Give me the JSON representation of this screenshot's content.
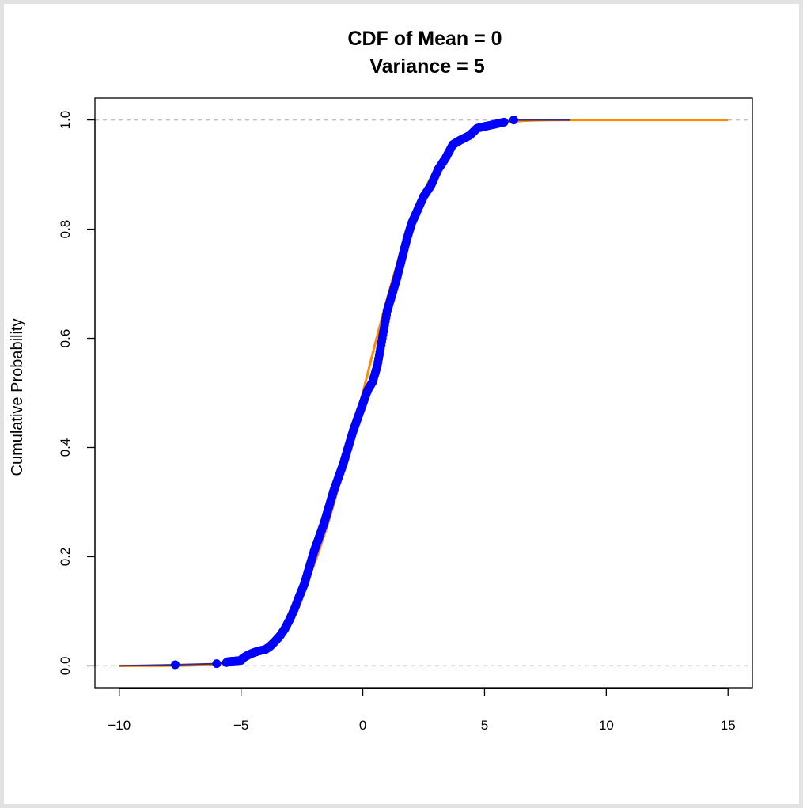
{
  "chart_data": {
    "type": "line",
    "title": "CDF of Mean = 0",
    "subtitle": "Variance = 5",
    "xlabel": "",
    "ylabel": "Cumulative Probability",
    "xlim": [
      -11,
      16
    ],
    "ylim": [
      -0.04,
      1.04
    ],
    "x_ticks": [
      -10,
      -5,
      0,
      5,
      10,
      15
    ],
    "x_tick_labels": [
      "−10",
      "−5",
      "0",
      "5",
      "10",
      "15"
    ],
    "y_ticks": [
      0.0,
      0.2,
      0.4,
      0.6,
      0.8,
      1.0
    ],
    "y_tick_labels": [
      "0.0",
      "0.2",
      "0.4",
      "0.6",
      "0.8",
      "1.0"
    ],
    "reference_lines": [
      0,
      1
    ],
    "grid": false,
    "legend": "none",
    "theoretical_cdf": {
      "distribution": "normal",
      "mean": 0,
      "variance": 5,
      "x_range": [
        -10,
        15
      ],
      "color": "#ff8c00"
    },
    "empirical_cdf": {
      "color": "#0000ff",
      "line_color": "#3a2a8a",
      "points": [
        [
          -10,
          0.0
        ],
        [
          -7.7,
          0.002
        ],
        [
          -6.0,
          0.004
        ],
        [
          -5.6,
          0.006
        ],
        [
          -5.5,
          0.008
        ],
        [
          -5.0,
          0.01
        ],
        [
          -4.9,
          0.015
        ],
        [
          -4.7,
          0.02
        ],
        [
          -4.5,
          0.024
        ],
        [
          -4.3,
          0.027
        ],
        [
          -4.0,
          0.03
        ],
        [
          -3.8,
          0.036
        ],
        [
          -3.6,
          0.045
        ],
        [
          -3.4,
          0.055
        ],
        [
          -3.2,
          0.068
        ],
        [
          -3.0,
          0.085
        ],
        [
          -2.8,
          0.105
        ],
        [
          -2.6,
          0.128
        ],
        [
          -2.4,
          0.15
        ],
        [
          -2.2,
          0.18
        ],
        [
          -2.0,
          0.21
        ],
        [
          -1.8,
          0.235
        ],
        [
          -1.6,
          0.26
        ],
        [
          -1.4,
          0.29
        ],
        [
          -1.2,
          0.32
        ],
        [
          -1.0,
          0.345
        ],
        [
          -0.8,
          0.37
        ],
        [
          -0.6,
          0.4
        ],
        [
          -0.4,
          0.43
        ],
        [
          -0.2,
          0.455
        ],
        [
          0.0,
          0.48
        ],
        [
          0.2,
          0.505
        ],
        [
          0.4,
          0.52
        ],
        [
          0.6,
          0.55
        ],
        [
          0.8,
          0.6
        ],
        [
          1.0,
          0.65
        ],
        [
          1.2,
          0.68
        ],
        [
          1.4,
          0.71
        ],
        [
          1.6,
          0.745
        ],
        [
          1.8,
          0.78
        ],
        [
          2.0,
          0.81
        ],
        [
          2.2,
          0.83
        ],
        [
          2.5,
          0.86
        ],
        [
          2.8,
          0.88
        ],
        [
          3.1,
          0.91
        ],
        [
          3.4,
          0.93
        ],
        [
          3.7,
          0.955
        ],
        [
          4.0,
          0.963
        ],
        [
          4.4,
          0.972
        ],
        [
          4.7,
          0.985
        ],
        [
          5.2,
          0.99
        ],
        [
          5.8,
          0.996
        ],
        [
          6.2,
          1.0
        ],
        [
          8.5,
          1.0
        ]
      ]
    }
  }
}
